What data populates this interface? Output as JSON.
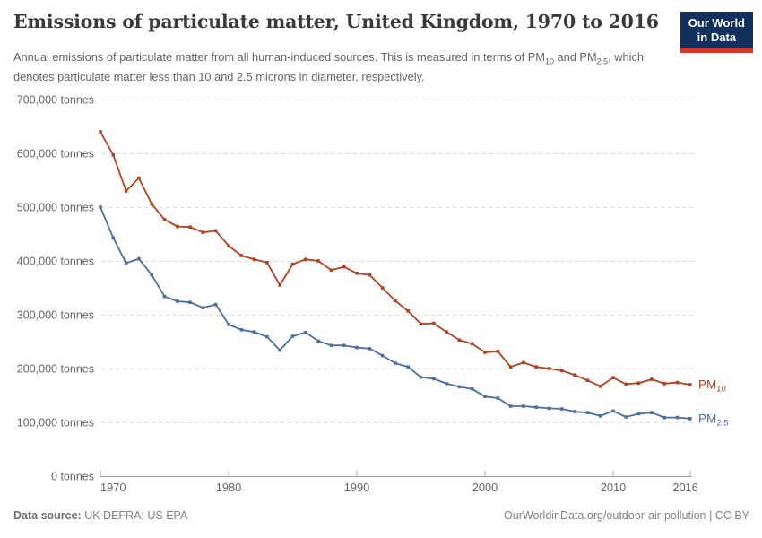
{
  "header": {
    "title": "Emissions of particulate matter, United Kingdom, 1970 to 2016",
    "subtitle_segments": [
      {
        "text": "Annual emissions of particulate matter from all human-induced sources. This is measured in terms of PM"
      },
      {
        "text": "10",
        "sub": true
      },
      {
        "text": " and PM"
      },
      {
        "text": "2.5",
        "sub": true
      },
      {
        "text": ", which denotes particulate matter less than 10 and 2.5 microns in diameter, respectively."
      }
    ],
    "logo": {
      "line1": "Our World",
      "line2": "in Data",
      "bg_color": "#12305c",
      "bar_color": "#d8352a"
    }
  },
  "footer": {
    "source_label": "Data source:",
    "source_value": "UK DEFRA; US EPA",
    "link": "OurWorldinData.org/outdoor-air-pollution | CC BY"
  },
  "chart_data": {
    "type": "line",
    "title": "Emissions of particulate matter, United Kingdom, 1970 to 2016",
    "xlabel": "",
    "ylabel": "tonnes",
    "ylim": [
      0,
      700000
    ],
    "grid": true,
    "legend_position": "right-end-labels",
    "x": [
      1970,
      1971,
      1972,
      1973,
      1974,
      1975,
      1976,
      1977,
      1978,
      1979,
      1980,
      1981,
      1982,
      1983,
      1984,
      1985,
      1986,
      1987,
      1988,
      1989,
      1990,
      1991,
      1992,
      1993,
      1994,
      1995,
      1996,
      1997,
      1998,
      1999,
      2000,
      2001,
      2002,
      2003,
      2004,
      2005,
      2006,
      2007,
      2008,
      2009,
      2010,
      2011,
      2012,
      2013,
      2014,
      2015,
      2016
    ],
    "series": [
      {
        "name": "PM10",
        "label_main": "PM",
        "label_sub": "10",
        "color": "#b04222",
        "values": [
          640000,
          597000,
          530000,
          554000,
          506000,
          477000,
          464000,
          463000,
          453000,
          456000,
          428000,
          410000,
          403000,
          397000,
          355000,
          394000,
          403000,
          400000,
          383000,
          389000,
          377000,
          374000,
          350000,
          326000,
          307000,
          283000,
          284000,
          268000,
          253000,
          246000,
          230000,
          232000,
          203000,
          211000,
          203000,
          200000,
          196000,
          188000,
          178000,
          167000,
          183000,
          171000,
          173000,
          180000,
          172000,
          174000,
          170000
        ]
      },
      {
        "name": "PM2.5",
        "label_main": "PM",
        "label_sub": "2.5",
        "color": "#4e6ea0",
        "values": [
          500000,
          443000,
          396000,
          404000,
          374000,
          334000,
          325000,
          323000,
          313000,
          319000,
          282000,
          272000,
          268000,
          259000,
          234000,
          260000,
          267000,
          251000,
          243000,
          243000,
          239000,
          237000,
          224000,
          210000,
          203000,
          184000,
          181000,
          172000,
          166000,
          162000,
          148000,
          145000,
          130000,
          130000,
          128000,
          126000,
          125000,
          120000,
          118000,
          112000,
          121000,
          110000,
          116000,
          118000,
          109000,
          109000,
          107000
        ]
      }
    ],
    "yticks": [
      {
        "value": 0,
        "label": "0 tonnes"
      },
      {
        "value": 100000,
        "label": "100,000 tonnes"
      },
      {
        "value": 200000,
        "label": "200,000 tonnes"
      },
      {
        "value": 300000,
        "label": "300,000 tonnes"
      },
      {
        "value": 400000,
        "label": "400,000 tonnes"
      },
      {
        "value": 500000,
        "label": "500,000 tonnes"
      },
      {
        "value": 600000,
        "label": "600,000 tonnes"
      },
      {
        "value": 700000,
        "label": "700,000 tonnes"
      }
    ],
    "xticks": [
      {
        "value": 1970,
        "label": "1970"
      },
      {
        "value": 1980,
        "label": "1980"
      },
      {
        "value": 1990,
        "label": "1990"
      },
      {
        "value": 2000,
        "label": "2000"
      },
      {
        "value": 2010,
        "label": "2010"
      },
      {
        "value": 2016,
        "label": "2016"
      }
    ],
    "colors": {
      "grid": "#dcdcdc",
      "axis": "#a3a3a3",
      "tick_text": "#666666"
    }
  }
}
